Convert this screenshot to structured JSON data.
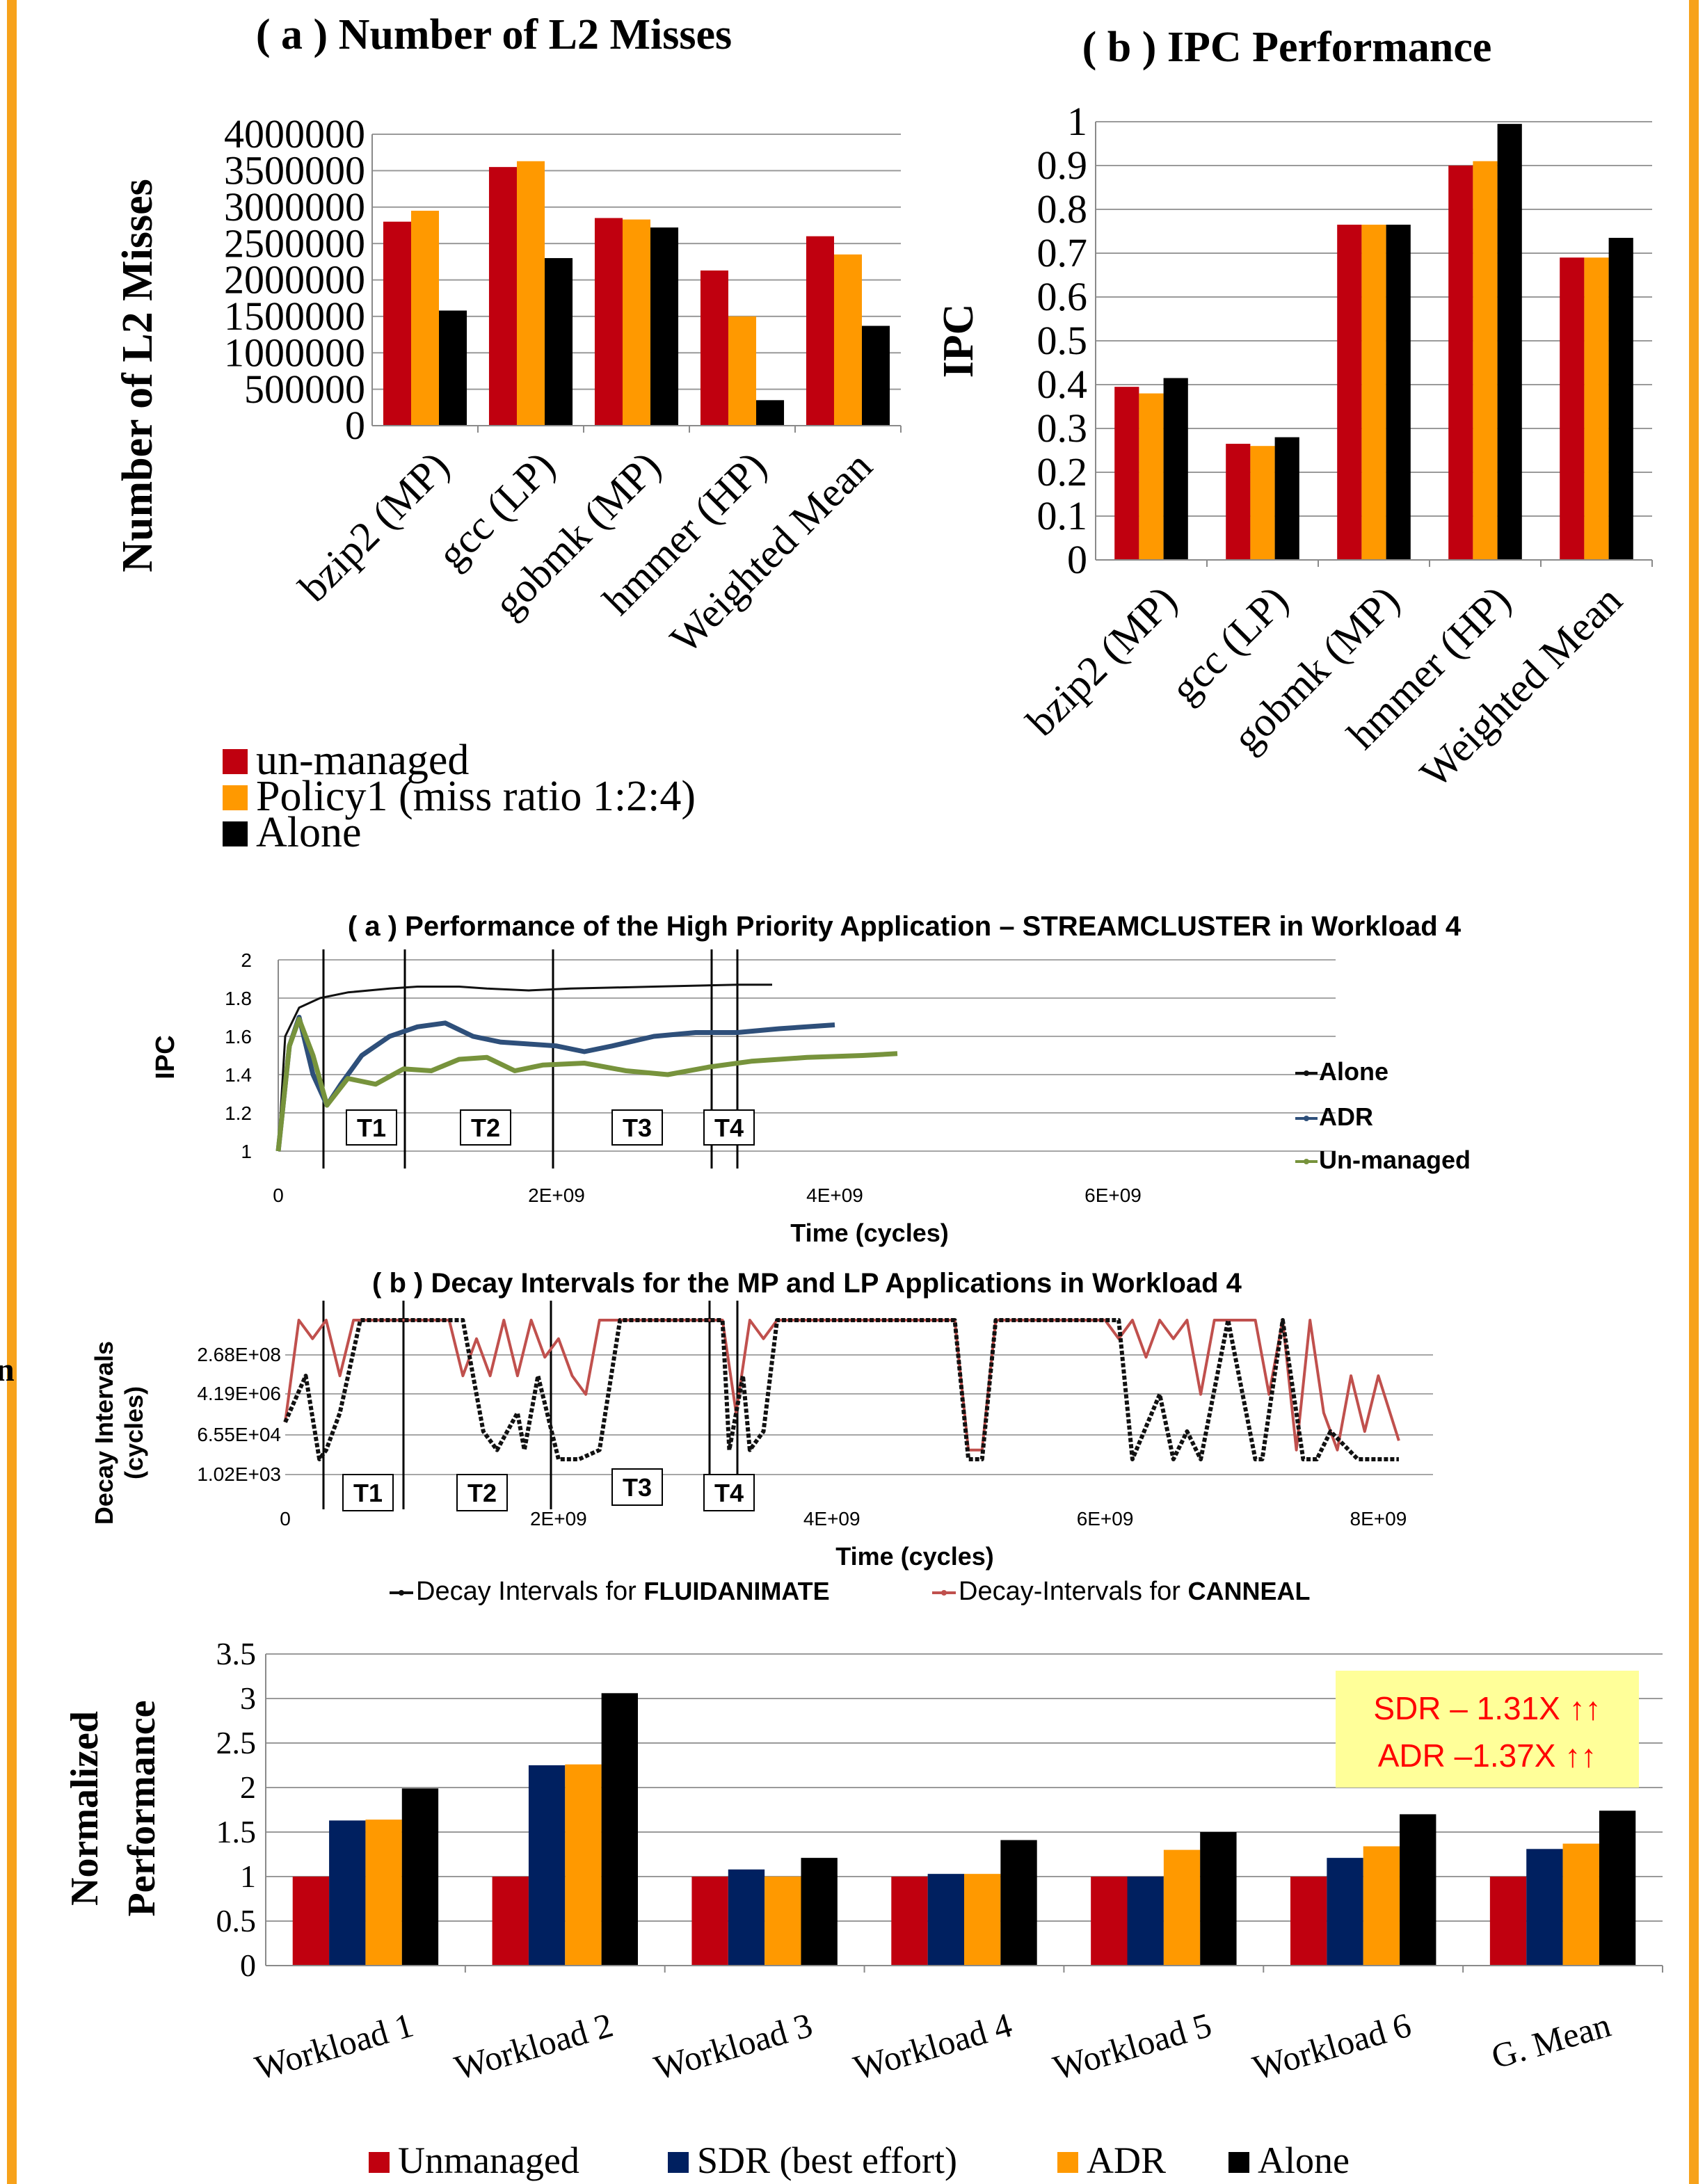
{
  "colors": {
    "border": "#f7a21b",
    "red": "#c0000f",
    "orange": "#ff9900",
    "black": "#000000",
    "navy": "#002060",
    "alone_line": "#111111",
    "adr_line": "#2e4f7a",
    "unmanaged_line": "#77933c",
    "canneal_line": "#c0504d"
  },
  "edge_glyph": "n",
  "chart_data": [
    {
      "id": "l2",
      "type": "bar",
      "title": "( a ) Number of L2 Misses",
      "ylabel": "Number of L2 Misses",
      "ylim": [
        0,
        4000000
      ],
      "yticks": [
        "4000000",
        "3500000",
        "3000000",
        "2500000",
        "2000000",
        "1500000",
        "1000000",
        "500000",
        "0"
      ],
      "categories": [
        "bzip2 (MP)",
        "gcc (LP)",
        "gobmk (MP)",
        "hmmer (HP)",
        "Weighted Mean"
      ],
      "series": [
        {
          "name": "un-managed",
          "color": "#c0000f",
          "values": [
            2800000,
            3550000,
            2850000,
            2130000,
            2600000
          ]
        },
        {
          "name": "Policy1 (miss ratio 1:2:4)",
          "color": "#ff9900",
          "values": [
            2950000,
            3630000,
            2830000,
            1500000,
            2350000
          ]
        },
        {
          "name": "Alone",
          "color": "#000000",
          "values": [
            1580000,
            2300000,
            2720000,
            350000,
            1370000
          ]
        }
      ]
    },
    {
      "id": "ipc",
      "type": "bar",
      "title": "( b ) IPC Performance",
      "ylabel": "IPC",
      "ylim": [
        0,
        1
      ],
      "yticks": [
        "1",
        "0.9",
        "0.8",
        "0.7",
        "0.6",
        "0.5",
        "0.4",
        "0.3",
        "0.2",
        "0.1",
        "0"
      ],
      "categories": [
        "bzip2 (MP)",
        "gcc (LP)",
        "gobmk (MP)",
        "hmmer (HP)",
        "Weighted Mean"
      ],
      "series": [
        {
          "name": "un-managed",
          "color": "#c0000f",
          "values": [
            0.395,
            0.265,
            0.765,
            0.9,
            0.69
          ]
        },
        {
          "name": "Policy1 (miss ratio 1:2:4)",
          "color": "#ff9900",
          "values": [
            0.38,
            0.26,
            0.765,
            0.91,
            0.69
          ]
        },
        {
          "name": "Alone",
          "color": "#000000",
          "values": [
            0.415,
            0.28,
            0.765,
            0.995,
            0.735
          ]
        }
      ]
    },
    {
      "id": "perf_line",
      "type": "line",
      "title": "( a ) Performance of the High Priority Application – STREAMCLUSTER in Workload 4",
      "xlabel": "Time (cycles)",
      "ylabel": "IPC",
      "xlim": [
        0,
        7600000000
      ],
      "ylim": [
        1,
        2
      ],
      "xticks": [
        "0",
        "2E+09",
        "4E+09",
        "6E+09"
      ],
      "yticks": [
        "2",
        "1.8",
        "1.6",
        "1.4",
        "1.2",
        "1"
      ],
      "phase_labels": [
        "T1",
        "T2",
        "T3",
        "T4"
      ],
      "series": [
        {
          "name": "Alone",
          "color": "#111111",
          "x": [
            0,
            50000000,
            150000000,
            300000000,
            500000000,
            800000000,
            1000000000,
            1300000000,
            1500000000,
            1800000000,
            2100000000,
            2400000000,
            2700000000,
            3000000000,
            3300000000,
            3550000000
          ],
          "y": [
            1.0,
            1.6,
            1.75,
            1.8,
            1.83,
            1.85,
            1.86,
            1.86,
            1.85,
            1.84,
            1.85,
            1.855,
            1.86,
            1.865,
            1.87,
            1.87
          ]
        },
        {
          "name": "ADR",
          "color": "#2e4f7a",
          "x": [
            0,
            80000000,
            150000000,
            250000000,
            350000000,
            450000000,
            600000000,
            800000000,
            1000000000,
            1200000000,
            1400000000,
            1600000000,
            1800000000,
            2000000000,
            2200000000,
            2400000000,
            2700000000,
            3000000000,
            3300000000,
            3600000000,
            4000000000
          ],
          "y": [
            1.0,
            1.55,
            1.7,
            1.4,
            1.24,
            1.35,
            1.5,
            1.6,
            1.65,
            1.67,
            1.6,
            1.57,
            1.56,
            1.55,
            1.52,
            1.55,
            1.6,
            1.62,
            1.62,
            1.64,
            1.66
          ]
        },
        {
          "name": "Un-managed",
          "color": "#77933c",
          "x": [
            0,
            80000000,
            150000000,
            250000000,
            350000000,
            500000000,
            700000000,
            900000000,
            1100000000,
            1300000000,
            1500000000,
            1700000000,
            1900000000,
            2200000000,
            2500000000,
            2800000000,
            3100000000,
            3400000000,
            3800000000,
            4200000000,
            4450000000
          ],
          "y": [
            1.0,
            1.55,
            1.69,
            1.5,
            1.24,
            1.38,
            1.35,
            1.43,
            1.42,
            1.48,
            1.49,
            1.42,
            1.45,
            1.46,
            1.42,
            1.4,
            1.44,
            1.47,
            1.49,
            1.5,
            1.51
          ]
        }
      ]
    },
    {
      "id": "decay",
      "type": "line",
      "title": "( b )    Decay Intervals for the MP and LP Applications in Workload 4",
      "xlabel": "Time (cycles)",
      "ylabel": "Decay Intervals (cycles)",
      "xlim": [
        0,
        8400000000
      ],
      "xticks": [
        "0",
        "2E+09",
        "4E+09",
        "6E+09",
        "8E+09"
      ],
      "yticks": [
        "2.68E+08",
        "4.19E+06",
        "6.55E+04",
        "1.02E+03"
      ],
      "ylevels": [
        1020,
        65500,
        4190000,
        268000000
      ],
      "phase_labels": [
        "T1",
        "T2",
        "T3",
        "T4"
      ],
      "series": [
        {
          "name": "Decay Intervals for ",
          "name_bold": "FLUIDANIMATE",
          "color": "#111111",
          "x": [
            0,
            150000000,
            250000000,
            300000000,
            400000000,
            550000000,
            700000000,
            850000000,
            1000000000,
            1200000000,
            1300000000,
            1450000000,
            1550000000,
            1700000000,
            1750000000,
            1850000000,
            1950000000,
            2000000000,
            2150000000,
            2300000000,
            2450000000,
            2550000000,
            3200000000,
            3250000000,
            3350000000,
            3400000000,
            3500000000,
            3600000000,
            4900000000,
            5000000000,
            5100000000,
            5200000000,
            6000000000,
            6100000000,
            6200000000,
            6400000000,
            6500000000,
            6600000000,
            6700000000,
            6900000000,
            7100000000,
            7150000000,
            7300000000,
            7450000000,
            7550000000,
            7650000000,
            7850000000,
            7950000000,
            8150000000
          ],
          "y": [
            6.5,
            9,
            4.5,
            5,
            7,
            12,
            12,
            12,
            12,
            12,
            12,
            6,
            5,
            7,
            5,
            9,
            6,
            4.5,
            4.5,
            5,
            12,
            12,
            12,
            5,
            9,
            5,
            6,
            12,
            12,
            4.5,
            4.5,
            12,
            12,
            12,
            4.5,
            8,
            4.5,
            6,
            4.5,
            12,
            4.5,
            4.5,
            12,
            4.5,
            4.5,
            6,
            4.5,
            4.5,
            4.5
          ]
        },
        {
          "name": "Decay-Intervals for ",
          "name_bold": "CANNEAL",
          "color": "#c0504d",
          "x": [
            0,
            100000000,
            200000000,
            300000000,
            400000000,
            500000000,
            600000000,
            1200000000,
            1300000000,
            1400000000,
            1500000000,
            1600000000,
            1700000000,
            1800000000,
            1900000000,
            2000000000,
            2100000000,
            2200000000,
            2300000000,
            2400000000,
            3200000000,
            3300000000,
            3400000000,
            3500000000,
            3600000000,
            4900000000,
            5000000000,
            5100000000,
            5200000000,
            6000000000,
            6100000000,
            6200000000,
            6300000000,
            6400000000,
            6500000000,
            6600000000,
            6700000000,
            6800000000,
            7100000000,
            7200000000,
            7300000000,
            7400000000,
            7500000000,
            7600000000,
            7700000000,
            7800000000,
            7900000000,
            8000000000,
            8150000000
          ],
          "y": [
            6.5,
            12,
            11,
            12,
            9,
            12,
            12,
            12,
            9,
            11,
            9,
            12,
            9,
            12,
            10,
            11,
            9,
            8,
            12,
            12,
            12,
            7,
            12,
            11,
            12,
            12,
            5,
            5,
            12,
            12,
            11,
            12,
            10,
            12,
            11,
            12,
            8,
            12,
            12,
            8,
            12,
            5,
            12,
            7,
            5,
            9,
            6,
            9,
            5.5
          ]
        }
      ]
    },
    {
      "id": "norm",
      "type": "bar",
      "ylabel": "Normalized Performance",
      "ylim": [
        0,
        3.5
      ],
      "yticks": [
        "3.5",
        "3",
        "2.5",
        "2",
        "1.5",
        "1",
        "0.5",
        "0"
      ],
      "categories": [
        "Workload 1",
        "Workload 2",
        "Workload 3",
        "Workload 4",
        "Workload 5",
        "Workload 6",
        "G. Mean"
      ],
      "annotation": [
        "SDR – 1.31X ↑↑",
        "ADR –1.37X ↑↑"
      ],
      "series": [
        {
          "name": "Unmanaged",
          "color": "#c0000f",
          "values": [
            1.0,
            1.0,
            1.0,
            1.0,
            1.0,
            1.0,
            1.0
          ]
        },
        {
          "name": "SDR (best effort)",
          "color": "#002060",
          "values": [
            1.63,
            2.25,
            1.08,
            1.03,
            1.0,
            1.21,
            1.31
          ]
        },
        {
          "name": "ADR",
          "color": "#ff9900",
          "values": [
            1.64,
            2.26,
            1.0,
            1.03,
            1.3,
            1.34,
            1.37
          ]
        },
        {
          "name": "Alone",
          "color": "#000000",
          "values": [
            1.99,
            3.06,
            1.21,
            1.41,
            1.5,
            1.7,
            1.74
          ]
        }
      ]
    }
  ]
}
